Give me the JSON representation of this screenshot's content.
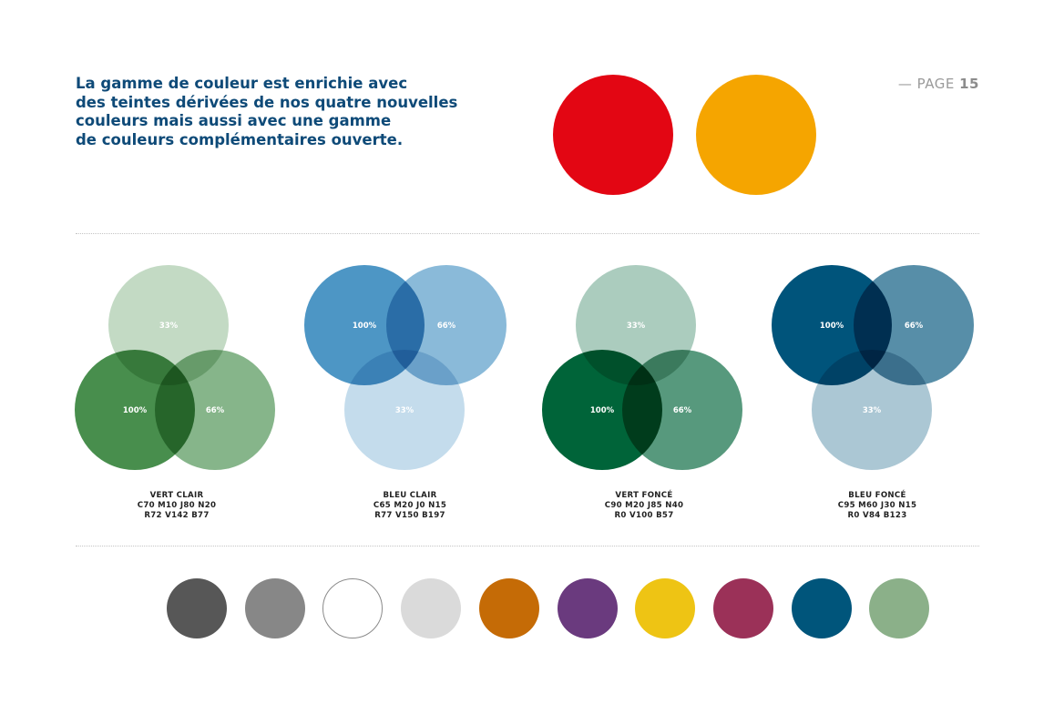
{
  "intro": {
    "lines": [
      "La gamme de couleur est enrichie avec",
      "des teintes dérivées de nos quatre nouvelles",
      "couleurs mais aussi avec une gamme",
      "de couleurs complémentaires ouverte."
    ]
  },
  "page": {
    "prefix": "— PAGE",
    "number": "15"
  },
  "primary_colors": [
    {
      "name": "red",
      "color": "#e30613"
    },
    {
      "name": "orange",
      "color": "#f5a500"
    }
  ],
  "palettes": [
    {
      "name": "VERT CLAIR",
      "cmjn": "C70 M10 J80 N20",
      "rvb": "R72 V142 B77",
      "base_color": "#488e4d",
      "layout": "bottom-pair",
      "circles": [
        {
          "label": "33%",
          "opacity": 0.33
        },
        {
          "label": "100%",
          "opacity": 1.0
        },
        {
          "label": "66%",
          "opacity": 0.66
        }
      ]
    },
    {
      "name": "BLEU CLAIR",
      "cmjn": "C65 M20 J0 N15",
      "rvb": "R77 V150 B197",
      "base_color": "#4d96c5",
      "layout": "top-pair",
      "circles": [
        {
          "label": "100%",
          "opacity": 1.0
        },
        {
          "label": "66%",
          "opacity": 0.66
        },
        {
          "label": "33%",
          "opacity": 0.33
        }
      ]
    },
    {
      "name": "VERT FONCÉ",
      "cmjn": "C90 M20 J85 N40",
      "rvb": "R0 V100 B57",
      "base_color": "#006439",
      "layout": "bottom-pair",
      "circles": [
        {
          "label": "33%",
          "opacity": 0.33
        },
        {
          "label": "100%",
          "opacity": 1.0
        },
        {
          "label": "66%",
          "opacity": 0.66
        }
      ]
    },
    {
      "name": "BLEU FONCÉ",
      "cmjn": "C95 M60 J30 N15",
      "rvb": "R0 V84 B123",
      "base_color": "#00547b",
      "layout": "top-pair",
      "circles": [
        {
          "label": "100%",
          "opacity": 1.0
        },
        {
          "label": "66%",
          "opacity": 0.66
        },
        {
          "label": "33%",
          "opacity": 0.33
        }
      ]
    }
  ],
  "complementary_colors": [
    {
      "name": "dark-gray",
      "color": "#575757"
    },
    {
      "name": "gray",
      "color": "#878787"
    },
    {
      "name": "white",
      "color": "#ffffff",
      "outline": "#8a8a8a"
    },
    {
      "name": "light-gray",
      "color": "#dadada"
    },
    {
      "name": "ochre",
      "color": "#c56b06"
    },
    {
      "name": "purple",
      "color": "#6a3a7e"
    },
    {
      "name": "yellow",
      "color": "#eec414"
    },
    {
      "name": "raspberry",
      "color": "#9b3158"
    },
    {
      "name": "petrol-blue",
      "color": "#00557b"
    },
    {
      "name": "sage-green",
      "color": "#8bb089"
    }
  ]
}
